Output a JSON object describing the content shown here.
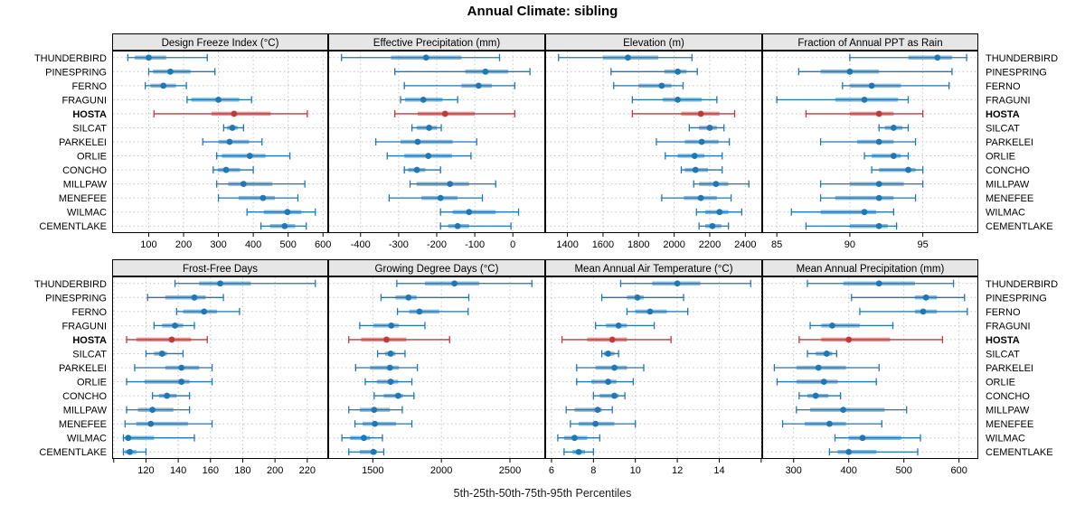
{
  "chart_data": {
    "type": "dot-whisker-trellis",
    "title": "Annual Climate: sibling",
    "caption": "5th-25th-50th-75th-95th Percentiles",
    "percentiles": [
      5,
      25,
      50,
      75,
      95
    ],
    "legend_position": "none",
    "grid": "dotted",
    "sites": [
      "THUNDERBIRD",
      "PINESPRING",
      "FERNO",
      "FRAGUNI",
      "HOSTA",
      "SILCAT",
      "PARKELEI",
      "ORLIE",
      "CONCHO",
      "MILLPAW",
      "MENEFEE",
      "WILMAC",
      "CEMENTLAKE"
    ],
    "highlight_site": "HOSTA",
    "colors": {
      "series": "#1f77b4",
      "highlight": "#c0393b",
      "grid_line": "#c3c3c3",
      "strip_bg": "#e6e6e6",
      "panel_border": "#000000",
      "text": "#000000"
    },
    "panels": [
      {
        "title": "Design Freeze Index (°C)",
        "xlim": [
          -5,
          615
        ],
        "ticks": [
          100,
          200,
          300,
          400,
          500,
          600
        ],
        "tick_labels": [
          "100",
          "200",
          "300",
          "400",
          "500",
          "600"
        ],
        "values": [
          [
            40,
            60,
            100,
            150,
            268
          ],
          [
            100,
            112,
            162,
            220,
            290
          ],
          [
            90,
            105,
            142,
            178,
            208
          ],
          [
            210,
            222,
            300,
            360,
            395
          ],
          [
            115,
            280,
            345,
            450,
            555
          ],
          [
            315,
            325,
            340,
            355,
            372
          ],
          [
            255,
            300,
            332,
            388,
            425
          ],
          [
            295,
            310,
            390,
            435,
            505
          ],
          [
            285,
            298,
            322,
            362,
            400
          ],
          [
            295,
            328,
            372,
            455,
            548
          ],
          [
            300,
            358,
            428,
            462,
            528
          ],
          [
            382,
            430,
            498,
            538,
            578
          ],
          [
            422,
            448,
            490,
            520,
            552
          ]
        ]
      },
      {
        "title": "Effective Precipitation (mm)",
        "xlim": [
          -485,
          85
        ],
        "ticks": [
          -400,
          -300,
          -200,
          -100,
          0
        ],
        "tick_labels": [
          "-400",
          "-300",
          "-200",
          "-100",
          "0"
        ],
        "values": [
          [
            -450,
            -320,
            -228,
            -135,
            -35
          ],
          [
            -310,
            -125,
            -72,
            -12,
            45
          ],
          [
            -285,
            -135,
            -90,
            -55,
            5
          ],
          [
            -295,
            -283,
            -235,
            -185,
            -145
          ],
          [
            -310,
            -250,
            -178,
            -100,
            5
          ],
          [
            -265,
            -252,
            -220,
            -200,
            -188
          ],
          [
            -360,
            -295,
            -250,
            -158,
            -95
          ],
          [
            -330,
            -285,
            -222,
            -160,
            -110
          ],
          [
            -285,
            -275,
            -252,
            -230,
            -190
          ],
          [
            -270,
            -253,
            -165,
            -115,
            -45
          ],
          [
            -325,
            -240,
            -190,
            -145,
            -80
          ],
          [
            -190,
            -158,
            -115,
            -45,
            15
          ],
          [
            -190,
            -170,
            -145,
            -115,
            -5
          ]
        ]
      },
      {
        "title": "Elevation (m)",
        "xlim": [
          1275,
          2495
        ],
        "ticks": [
          1400,
          1600,
          1800,
          2000,
          2200,
          2400
        ],
        "tick_labels": [
          "1400",
          "1600",
          "1800",
          "2000",
          "2200",
          "2400"
        ],
        "values": [
          [
            1350,
            1600,
            1740,
            1910,
            2100
          ],
          [
            1645,
            1945,
            2020,
            2070,
            2130
          ],
          [
            1660,
            1800,
            1930,
            1985,
            2050
          ],
          [
            1765,
            1935,
            2020,
            2155,
            2240
          ],
          [
            1765,
            2040,
            2150,
            2255,
            2340
          ],
          [
            2085,
            2140,
            2200,
            2240,
            2280
          ],
          [
            1900,
            2060,
            2155,
            2250,
            2310
          ],
          [
            1950,
            2020,
            2115,
            2170,
            2270
          ],
          [
            2040,
            2060,
            2120,
            2190,
            2270
          ],
          [
            2110,
            2140,
            2235,
            2305,
            2420
          ],
          [
            1930,
            2055,
            2150,
            2240,
            2320
          ],
          [
            2125,
            2175,
            2255,
            2305,
            2380
          ],
          [
            2140,
            2175,
            2215,
            2265,
            2305
          ]
        ]
      },
      {
        "title": "Fraction of Annual PPT as Rain",
        "xlim": [
          84,
          98.8
        ],
        "ticks": [
          85,
          90,
          95
        ],
        "tick_labels": [
          "85",
          "90",
          "95"
        ],
        "values": [
          [
            90,
            94,
            96,
            97,
            98
          ],
          [
            86.5,
            88,
            90,
            92,
            97
          ],
          [
            89.5,
            90,
            91.5,
            93.5,
            96.8
          ],
          [
            85,
            89,
            91,
            93.3,
            94
          ],
          [
            87,
            90,
            92,
            93,
            95
          ],
          [
            92,
            92.4,
            93,
            93.6,
            94
          ],
          [
            88,
            90.5,
            92,
            93,
            94.5
          ],
          [
            91,
            91.5,
            93,
            93.5,
            94
          ],
          [
            91.5,
            92,
            94,
            94.5,
            95
          ],
          [
            88,
            90,
            92,
            93.7,
            95
          ],
          [
            88,
            89,
            92,
            93,
            94.5
          ],
          [
            86,
            88,
            91,
            91.8,
            93
          ],
          [
            87,
            90,
            92,
            92.6,
            93.2
          ]
        ]
      },
      {
        "title": "Frost-Free Days",
        "xlim": [
          99,
          233
        ],
        "ticks": [
          100,
          120,
          140,
          160,
          180,
          200,
          220
        ],
        "tick_labels": [
          "",
          "120",
          "140",
          "160",
          "180",
          "200",
          "220"
        ],
        "values": [
          [
            138,
            153,
            166,
            185,
            225
          ],
          [
            121,
            132,
            150,
            157,
            168
          ],
          [
            139,
            143,
            156,
            164,
            178
          ],
          [
            125,
            130,
            138,
            143,
            150
          ],
          [
            108,
            114,
            136,
            148,
            158
          ],
          [
            120,
            125,
            130,
            133,
            143
          ],
          [
            113,
            132,
            142,
            153,
            161
          ],
          [
            108,
            119,
            142,
            147,
            161
          ],
          [
            124,
            128,
            133,
            139,
            147
          ],
          [
            108,
            115,
            124,
            137,
            147
          ],
          [
            107,
            114,
            123,
            146,
            161
          ],
          [
            106,
            107,
            109,
            125,
            150
          ],
          [
            106,
            107,
            110,
            114,
            120
          ]
        ]
      },
      {
        "title": "Growing Degree Days (°C)",
        "xlim": [
          1175,
          2757
        ],
        "ticks": [
          1500,
          2000,
          2500
        ],
        "tick_labels": [
          "1500",
          "2000",
          "2500"
        ],
        "values": [
          [
            1675,
            1880,
            2095,
            2275,
            2660
          ],
          [
            1560,
            1665,
            1760,
            1820,
            2200
          ],
          [
            1680,
            1765,
            1840,
            1985,
            2195
          ],
          [
            1405,
            1505,
            1635,
            1690,
            1880
          ],
          [
            1325,
            1415,
            1600,
            1745,
            2060
          ],
          [
            1535,
            1590,
            1630,
            1665,
            1735
          ],
          [
            1375,
            1480,
            1625,
            1690,
            1825
          ],
          [
            1445,
            1530,
            1630,
            1685,
            1785
          ],
          [
            1510,
            1580,
            1685,
            1720,
            1800
          ],
          [
            1325,
            1405,
            1510,
            1625,
            1715
          ],
          [
            1370,
            1425,
            1515,
            1670,
            1785
          ],
          [
            1275,
            1335,
            1435,
            1480,
            1570
          ],
          [
            1325,
            1405,
            1505,
            1530,
            1580
          ]
        ]
      },
      {
        "title": "Mean Annual Air Temperature (°C)",
        "xlim": [
          5.7,
          16.05
        ],
        "ticks": [
          6,
          8,
          10,
          12,
          14,
          16
        ],
        "tick_labels": [
          "6",
          "8",
          "10",
          "12",
          "14",
          ""
        ],
        "values": [
          [
            9.3,
            10.8,
            12.0,
            13.1,
            15.5
          ],
          [
            8.4,
            9.6,
            10.1,
            10.4,
            12.3
          ],
          [
            9.6,
            10.0,
            10.7,
            11.5,
            12.5
          ],
          [
            8.1,
            8.6,
            9.2,
            9.6,
            10.9
          ],
          [
            6.5,
            7.7,
            8.9,
            9.6,
            11.7
          ],
          [
            8.4,
            8.5,
            8.7,
            9.0,
            9.2
          ],
          [
            7.2,
            8.1,
            9.0,
            9.6,
            10.4
          ],
          [
            7.2,
            7.9,
            8.7,
            9.1,
            9.9
          ],
          [
            8.0,
            8.3,
            9.0,
            9.2,
            9.5
          ],
          [
            6.7,
            7.1,
            8.2,
            8.4,
            8.9
          ],
          [
            6.9,
            7.3,
            8.1,
            9.0,
            10.0
          ],
          [
            6.3,
            6.6,
            7.1,
            7.7,
            8.3
          ],
          [
            6.6,
            7.0,
            7.3,
            7.6,
            8.0
          ]
        ]
      },
      {
        "title": "Mean Annual Precipitation (mm)",
        "xlim": [
          243,
          635
        ],
        "ticks": [
          300,
          400,
          500,
          600
        ],
        "tick_labels": [
          "300",
          "400",
          "500",
          "600"
        ],
        "values": [
          [
            325,
            390,
            455,
            520,
            590
          ],
          [
            405,
            520,
            540,
            560,
            610
          ],
          [
            420,
            520,
            535,
            560,
            615
          ],
          [
            330,
            350,
            370,
            420,
            480
          ],
          [
            310,
            350,
            400,
            475,
            570
          ],
          [
            325,
            340,
            360,
            370,
            378
          ],
          [
            265,
            305,
            345,
            395,
            455
          ],
          [
            270,
            305,
            355,
            380,
            450
          ],
          [
            310,
            325,
            340,
            363,
            385
          ],
          [
            305,
            330,
            390,
            465,
            505
          ],
          [
            280,
            320,
            365,
            395,
            460
          ],
          [
            375,
            400,
            425,
            495,
            530
          ],
          [
            365,
            380,
            400,
            450,
            525
          ]
        ]
      }
    ]
  }
}
